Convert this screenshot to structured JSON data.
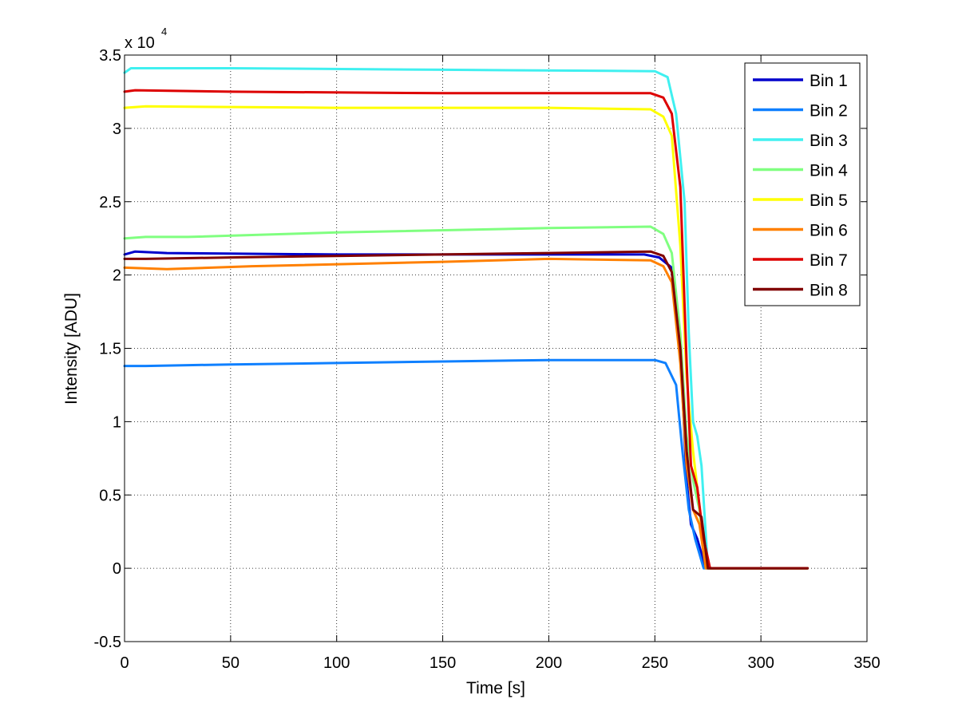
{
  "chart_data": {
    "type": "line",
    "xlabel": "Time [s]",
    "ylabel": "Intensity [ADU]",
    "xlim": [
      0,
      350
    ],
    "ylim": [
      -0.5,
      3.5
    ],
    "y_exponent_label": "x 10",
    "y_exponent": "4",
    "xticks": [
      "0",
      "50",
      "100",
      "150",
      "200",
      "250",
      "300",
      "350"
    ],
    "yticks": [
      "-0.5",
      "0",
      "0.5",
      "1",
      "1.5",
      "2",
      "2.5",
      "3",
      "3.5"
    ],
    "grid": true,
    "legend_position": "top-right",
    "series": [
      {
        "name": "Bin 1",
        "color": "#0000cc",
        "points": [
          [
            0,
            2.14
          ],
          [
            5,
            2.16
          ],
          [
            20,
            2.15
          ],
          [
            100,
            2.14
          ],
          [
            200,
            2.14
          ],
          [
            245,
            2.14
          ],
          [
            252,
            2.12
          ],
          [
            258,
            2.05
          ],
          [
            262,
            1.5
          ],
          [
            265,
            0.6
          ],
          [
            267,
            0.3
          ],
          [
            270,
            0.2
          ],
          [
            274,
            0.0
          ],
          [
            322,
            0.0
          ]
        ]
      },
      {
        "name": "Bin 2",
        "color": "#0f80ff",
        "points": [
          [
            0,
            1.38
          ],
          [
            10,
            1.38
          ],
          [
            50,
            1.39
          ],
          [
            100,
            1.4
          ],
          [
            150,
            1.41
          ],
          [
            200,
            1.42
          ],
          [
            250,
            1.42
          ],
          [
            255,
            1.4
          ],
          [
            260,
            1.25
          ],
          [
            263,
            0.8
          ],
          [
            266,
            0.4
          ],
          [
            269,
            0.2
          ],
          [
            273,
            0.0
          ],
          [
            322,
            0.0
          ]
        ]
      },
      {
        "name": "Bin 3",
        "color": "#40f0f0",
        "points": [
          [
            0,
            3.38
          ],
          [
            3,
            3.41
          ],
          [
            50,
            3.41
          ],
          [
            150,
            3.4
          ],
          [
            250,
            3.39
          ],
          [
            256,
            3.35
          ],
          [
            260,
            3.1
          ],
          [
            264,
            2.5
          ],
          [
            266,
            1.6
          ],
          [
            268,
            1.0
          ],
          [
            270,
            0.9
          ],
          [
            272,
            0.7
          ],
          [
            275,
            0.0
          ],
          [
            322,
            0.0
          ]
        ]
      },
      {
        "name": "Bin 4",
        "color": "#80ff80",
        "points": [
          [
            0,
            2.25
          ],
          [
            10,
            2.26
          ],
          [
            30,
            2.26
          ],
          [
            100,
            2.29
          ],
          [
            200,
            2.32
          ],
          [
            248,
            2.33
          ],
          [
            254,
            2.28
          ],
          [
            258,
            2.15
          ],
          [
            262,
            1.6
          ],
          [
            265,
            0.9
          ],
          [
            268,
            0.6
          ],
          [
            271,
            0.4
          ],
          [
            274,
            0.0
          ],
          [
            322,
            0.0
          ]
        ]
      },
      {
        "name": "Bin 5",
        "color": "#ffff00",
        "points": [
          [
            0,
            3.14
          ],
          [
            10,
            3.15
          ],
          [
            100,
            3.14
          ],
          [
            200,
            3.14
          ],
          [
            248,
            3.13
          ],
          [
            254,
            3.08
          ],
          [
            258,
            2.95
          ],
          [
            262,
            2.2
          ],
          [
            265,
            1.3
          ],
          [
            268,
            0.8
          ],
          [
            272,
            0.3
          ],
          [
            275,
            0.0
          ],
          [
            322,
            0.0
          ]
        ]
      },
      {
        "name": "Bin 6",
        "color": "#ff8000",
        "points": [
          [
            0,
            2.05
          ],
          [
            20,
            2.04
          ],
          [
            60,
            2.06
          ],
          [
            150,
            2.09
          ],
          [
            200,
            2.11
          ],
          [
            248,
            2.1
          ],
          [
            254,
            2.06
          ],
          [
            258,
            1.95
          ],
          [
            262,
            1.4
          ],
          [
            265,
            0.7
          ],
          [
            268,
            0.4
          ],
          [
            271,
            0.3
          ],
          [
            274,
            0.0
          ],
          [
            322,
            0.0
          ]
        ]
      },
      {
        "name": "Bin 7",
        "color": "#dd0000",
        "points": [
          [
            0,
            3.25
          ],
          [
            5,
            3.26
          ],
          [
            50,
            3.25
          ],
          [
            150,
            3.24
          ],
          [
            248,
            3.24
          ],
          [
            254,
            3.21
          ],
          [
            258,
            3.1
          ],
          [
            262,
            2.6
          ],
          [
            265,
            1.4
          ],
          [
            267,
            0.7
          ],
          [
            270,
            0.55
          ],
          [
            273,
            0.2
          ],
          [
            276,
            0.0
          ],
          [
            322,
            0.0
          ]
        ]
      },
      {
        "name": "Bin 8",
        "color": "#800000",
        "points": [
          [
            0,
            2.11
          ],
          [
            10,
            2.11
          ],
          [
            50,
            2.12
          ],
          [
            100,
            2.13
          ],
          [
            200,
            2.15
          ],
          [
            248,
            2.16
          ],
          [
            254,
            2.13
          ],
          [
            258,
            2.02
          ],
          [
            262,
            1.5
          ],
          [
            265,
            0.8
          ],
          [
            268,
            0.4
          ],
          [
            272,
            0.35
          ],
          [
            275,
            0.0
          ],
          [
            322,
            0.0
          ]
        ]
      }
    ]
  }
}
